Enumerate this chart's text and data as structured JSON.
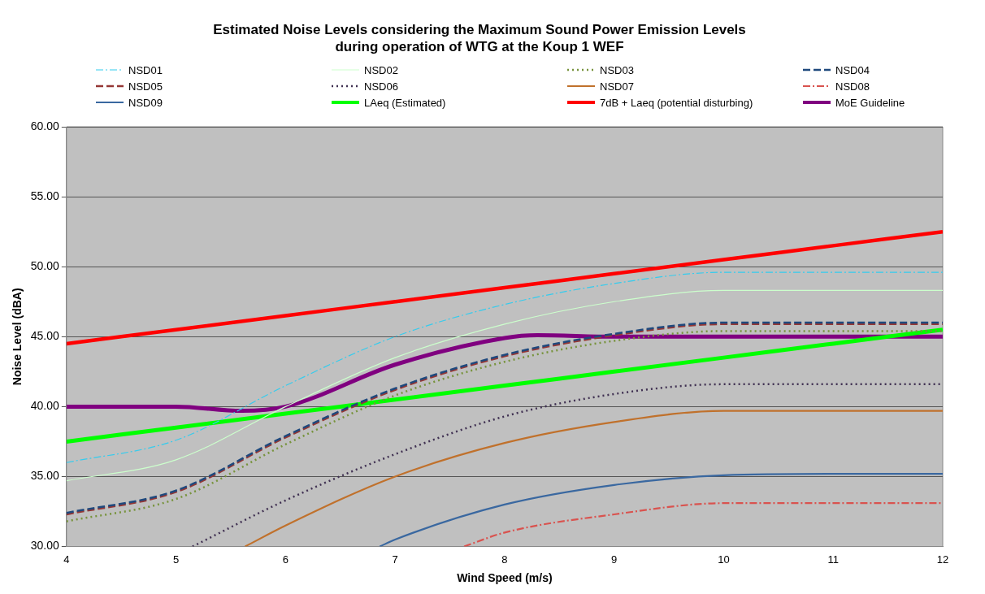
{
  "chart_data": {
    "type": "line",
    "title": "Estimated Noise Levels considering the Maximum Sound Power Emission Levels\nduring operation of WTG at the Koup 1 WEF",
    "xlabel": "Wind Speed (m/s)",
    "ylabel": "Noise Level (dBA)",
    "x": [
      4,
      5,
      6,
      7,
      8,
      9,
      10,
      11,
      12
    ],
    "series": [
      {
        "name": "NSD01",
        "color": "#33ccee",
        "line_style": "dashdot",
        "values": [
          36.0,
          37.6,
          41.5,
          45.0,
          47.3,
          48.8,
          49.6,
          49.6,
          49.6
        ]
      },
      {
        "name": "NSD02",
        "color": "#ccffcc",
        "line_style": "solid",
        "values": [
          34.7,
          36.2,
          40.0,
          43.5,
          45.9,
          47.5,
          48.3,
          48.3,
          48.3
        ]
      },
      {
        "name": "NSD03",
        "color": "#77933c",
        "line_style": "dotted",
        "values": [
          31.8,
          33.4,
          37.3,
          40.8,
          43.2,
          44.7,
          45.4,
          45.4,
          45.4
        ]
      },
      {
        "name": "NSD04",
        "color": "#1f497d",
        "line_style": "dashed",
        "values": [
          32.4,
          34.0,
          37.9,
          41.3,
          43.7,
          45.2,
          46.0,
          46.0,
          46.0
        ]
      },
      {
        "name": "NSD05",
        "color": "#953735",
        "line_style": "dashed",
        "values": [
          32.3,
          33.9,
          37.8,
          41.2,
          43.6,
          45.1,
          45.9,
          45.9,
          45.9
        ]
      },
      {
        "name": "NSD06",
        "color": "#403152",
        "line_style": "dotted",
        "x": [
          5.15,
          6,
          7,
          8,
          9,
          10,
          11,
          12
        ],
        "values": [
          30.0,
          33.3,
          36.6,
          39.3,
          40.9,
          41.6,
          41.6,
          41.6
        ]
      },
      {
        "name": "NSD07",
        "color": "#c0712c",
        "line_style": "solid",
        "x": [
          5.63,
          6,
          7,
          8,
          9,
          10,
          11,
          12
        ],
        "values": [
          30.0,
          31.5,
          35.0,
          37.4,
          38.9,
          39.7,
          39.7,
          39.7
        ]
      },
      {
        "name": "NSD08",
        "color": "#d9534f",
        "line_style": "dashdot",
        "x": [
          7.63,
          8,
          9,
          10,
          11,
          12
        ],
        "values": [
          30.0,
          31.0,
          32.3,
          33.1,
          33.1,
          33.1
        ]
      },
      {
        "name": "NSD09",
        "color": "#3a68a0",
        "line_style": "solid",
        "x": [
          6.86,
          7,
          8,
          9,
          10,
          11,
          12
        ],
        "values": [
          30.0,
          30.5,
          33.0,
          34.4,
          35.1,
          35.2,
          35.2
        ]
      },
      {
        "name": "LAeq (Estimated)",
        "color": "#00ff00",
        "line_style": "solid",
        "values": [
          37.5,
          38.5,
          39.5,
          40.5,
          41.5,
          42.5,
          43.5,
          44.5,
          45.5
        ]
      },
      {
        "name": "7dB + Laeq (potential disturbing)",
        "color": "#ff0000",
        "line_style": "solid",
        "values": [
          44.5,
          45.5,
          46.5,
          47.5,
          48.5,
          49.5,
          50.5,
          51.5,
          52.5
        ]
      },
      {
        "name": "MoE Guideline",
        "color": "#800080",
        "line_style": "solid",
        "x": [
          4,
          5,
          5.6,
          6,
          7,
          8,
          8.3,
          9,
          10,
          11,
          12
        ],
        "values": [
          40.0,
          40.0,
          39.7,
          40.0,
          43.0,
          44.9,
          45.1,
          45.0,
          45.0,
          45.0,
          45.0
        ]
      }
    ],
    "xlim": [
      4,
      12
    ],
    "xticks": [
      4,
      5,
      6,
      7,
      8,
      9,
      10,
      11,
      12
    ],
    "ylim": [
      30,
      60
    ],
    "yticks": [
      {
        "value": 30,
        "label": "30.00"
      },
      {
        "value": 35,
        "label": "35.00"
      },
      {
        "value": 40,
        "label": "40.00"
      },
      {
        "value": 45,
        "label": "45.00"
      },
      {
        "value": 50,
        "label": "50.00"
      },
      {
        "value": 55,
        "label": "55.00"
      },
      {
        "value": 60,
        "label": "60.00"
      }
    ],
    "grid": "y",
    "legend": "top",
    "marker": "none"
  }
}
